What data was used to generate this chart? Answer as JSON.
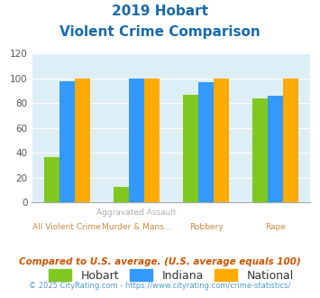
{
  "title_line1": "2019 Hobart",
  "title_line2": "Violent Crime Comparison",
  "row1_labels": [
    "",
    "Aggravated Assault",
    "",
    ""
  ],
  "row2_labels": [
    "All Violent Crime",
    "Murder & Mans...",
    "Robbery",
    "Rape"
  ],
  "hobart": [
    37,
    13,
    87,
    84
  ],
  "indiana": [
    98,
    100,
    97,
    86
  ],
  "national": [
    100,
    100,
    100,
    100
  ],
  "hobart_color": "#7ec820",
  "indiana_color": "#3399ff",
  "national_color": "#ffaa00",
  "bg_color": "#ddeef6",
  "ylim": [
    0,
    120
  ],
  "yticks": [
    0,
    20,
    40,
    60,
    80,
    100,
    120
  ],
  "title_color": "#1a6aaa",
  "footer_note": "Compared to U.S. average. (U.S. average equals 100)",
  "footer_credit": "© 2025 CityRating.com - https://www.cityrating.com/crime-statistics/",
  "footer_note_color": "#cc5500",
  "footer_credit_color": "#5599cc",
  "label_top_color": "#aaaaaa",
  "label_bot_color": "#cc8844",
  "legend_labels": [
    "Hobart",
    "Indiana",
    "National"
  ]
}
